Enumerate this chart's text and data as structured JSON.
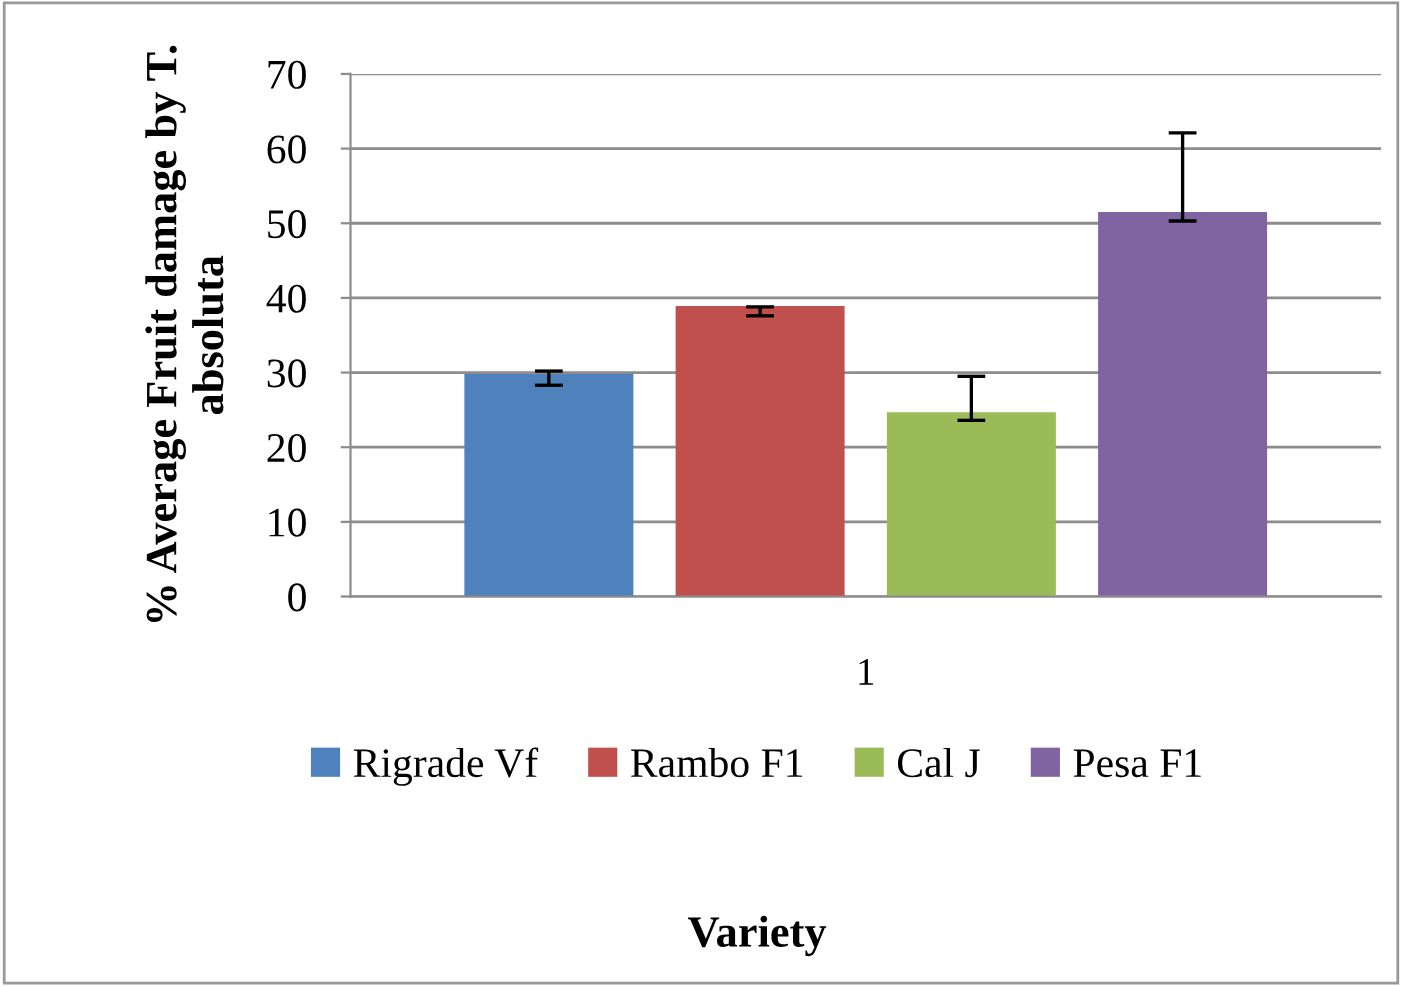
{
  "chart_data": {
    "type": "bar",
    "annotations": [
      "Variety"
    ],
    "ylabel": "% Average Fruit damage by T. absoluta",
    "categories": [
      "1"
    ],
    "series": [
      {
        "name": "Rigrade Vf",
        "color": "#4f81bd",
        "values": [
          29.8
        ],
        "errors": [
          [
            28.3,
            30.2
          ]
        ]
      },
      {
        "name": "Rambo F1",
        "color": "#c0504d",
        "values": [
          38.9
        ],
        "errors": [
          [
            37.6,
            38.8
          ]
        ]
      },
      {
        "name": "Cal J",
        "color": "#9bbb59",
        "values": [
          24.7
        ],
        "errors": [
          [
            23.6,
            29.5
          ]
        ]
      },
      {
        "name": "Pesa F1",
        "color": "#8064a2",
        "values": [
          51.5
        ],
        "errors": [
          [
            50.3,
            62.1
          ]
        ]
      }
    ],
    "ylim": [
      0,
      70
    ],
    "yticks": [
      0,
      10,
      20,
      30,
      40,
      50,
      60,
      70
    ],
    "grid": "y",
    "legend": "bottom"
  }
}
